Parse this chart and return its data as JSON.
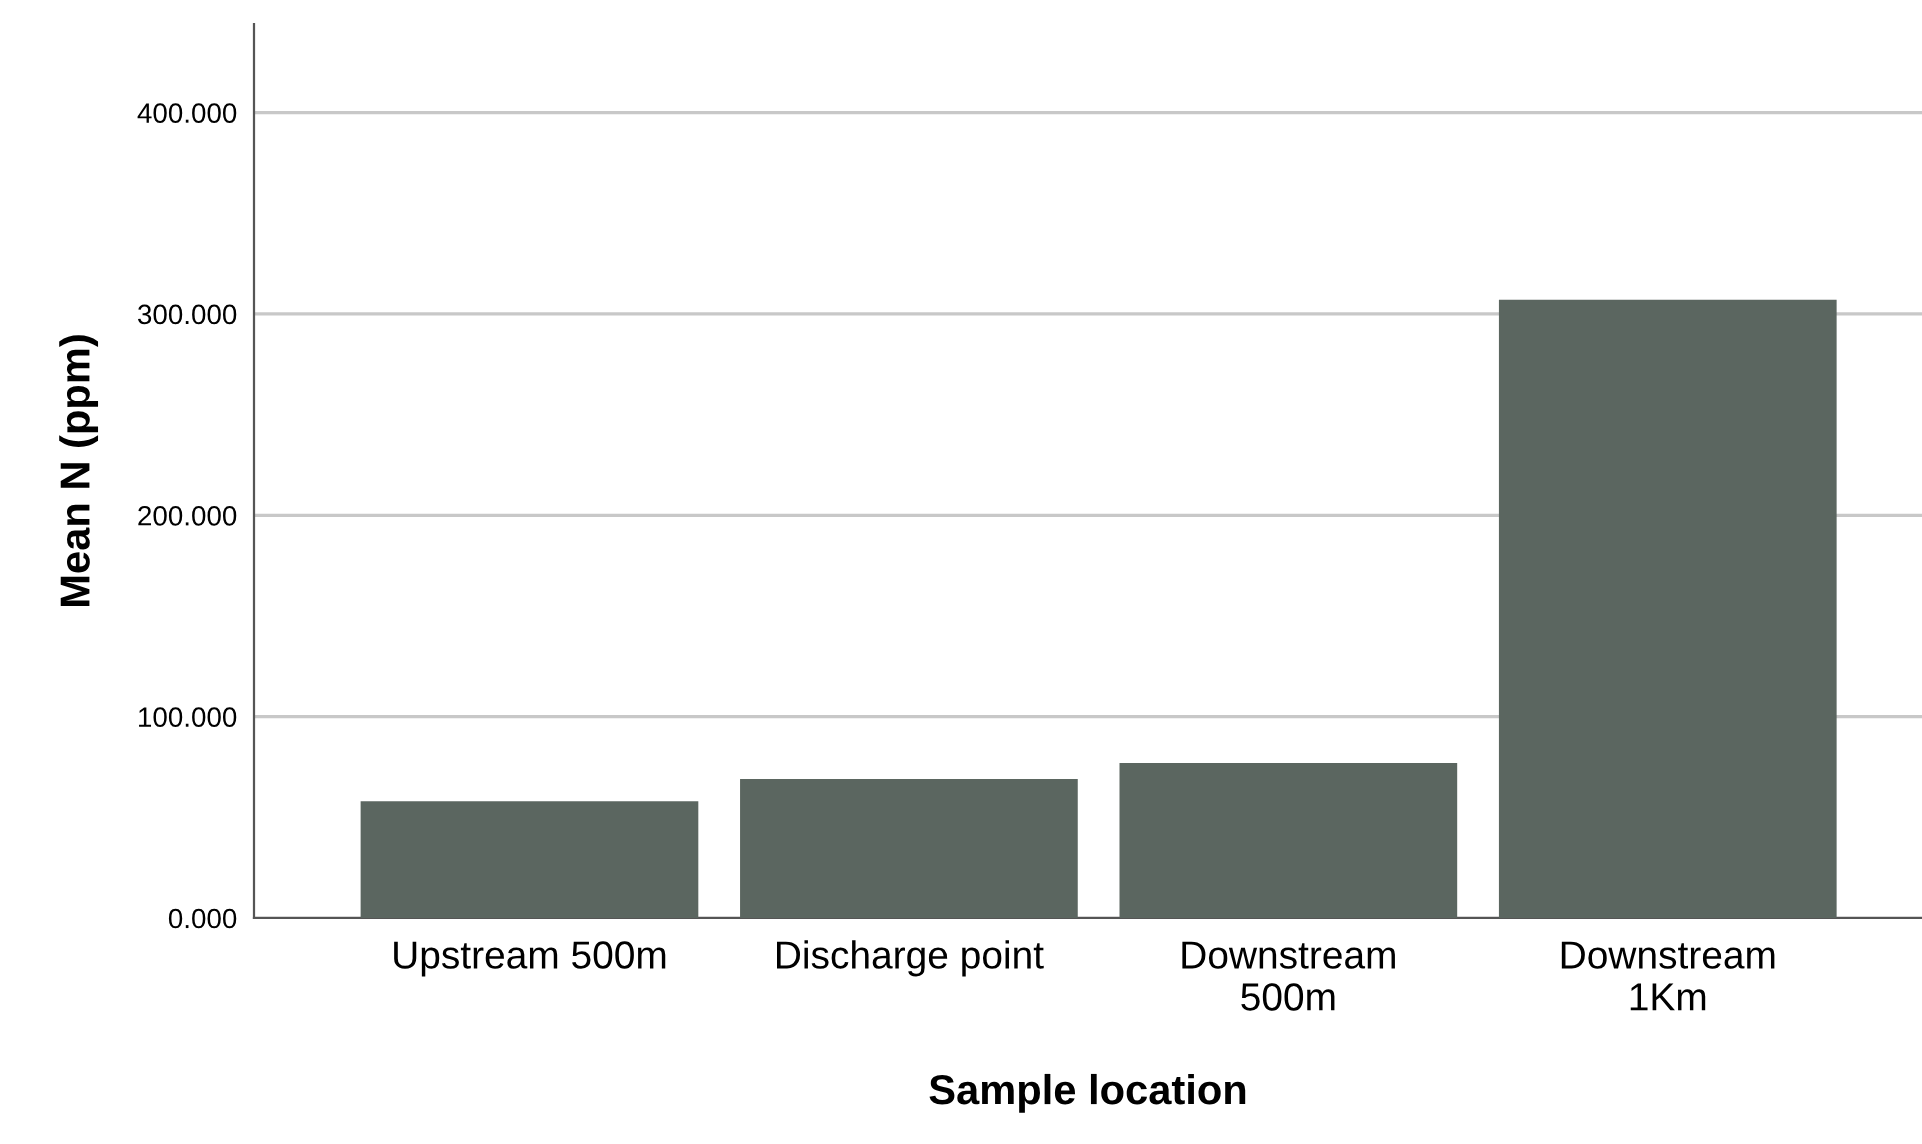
{
  "chart_data": {
    "type": "bar",
    "xlabel": "Sample location",
    "ylabel": "Mean N (ppm)",
    "categories": [
      "Upstream 500m",
      "Discharge point",
      "Downstream\n500m",
      "Downstream\n1Km"
    ],
    "values": [
      58,
      69,
      77,
      307
    ],
    "color": "#5b6660",
    "ylim": [
      0,
      444
    ],
    "yticks": [
      {
        "value": 0,
        "label": "0.000"
      },
      {
        "value": 100,
        "label": "100.000"
      },
      {
        "value": 200,
        "label": "200.000"
      },
      {
        "value": 300,
        "label": "300.000"
      },
      {
        "value": 400,
        "label": "400.000"
      }
    ],
    "grid": "y",
    "legend": false
  }
}
